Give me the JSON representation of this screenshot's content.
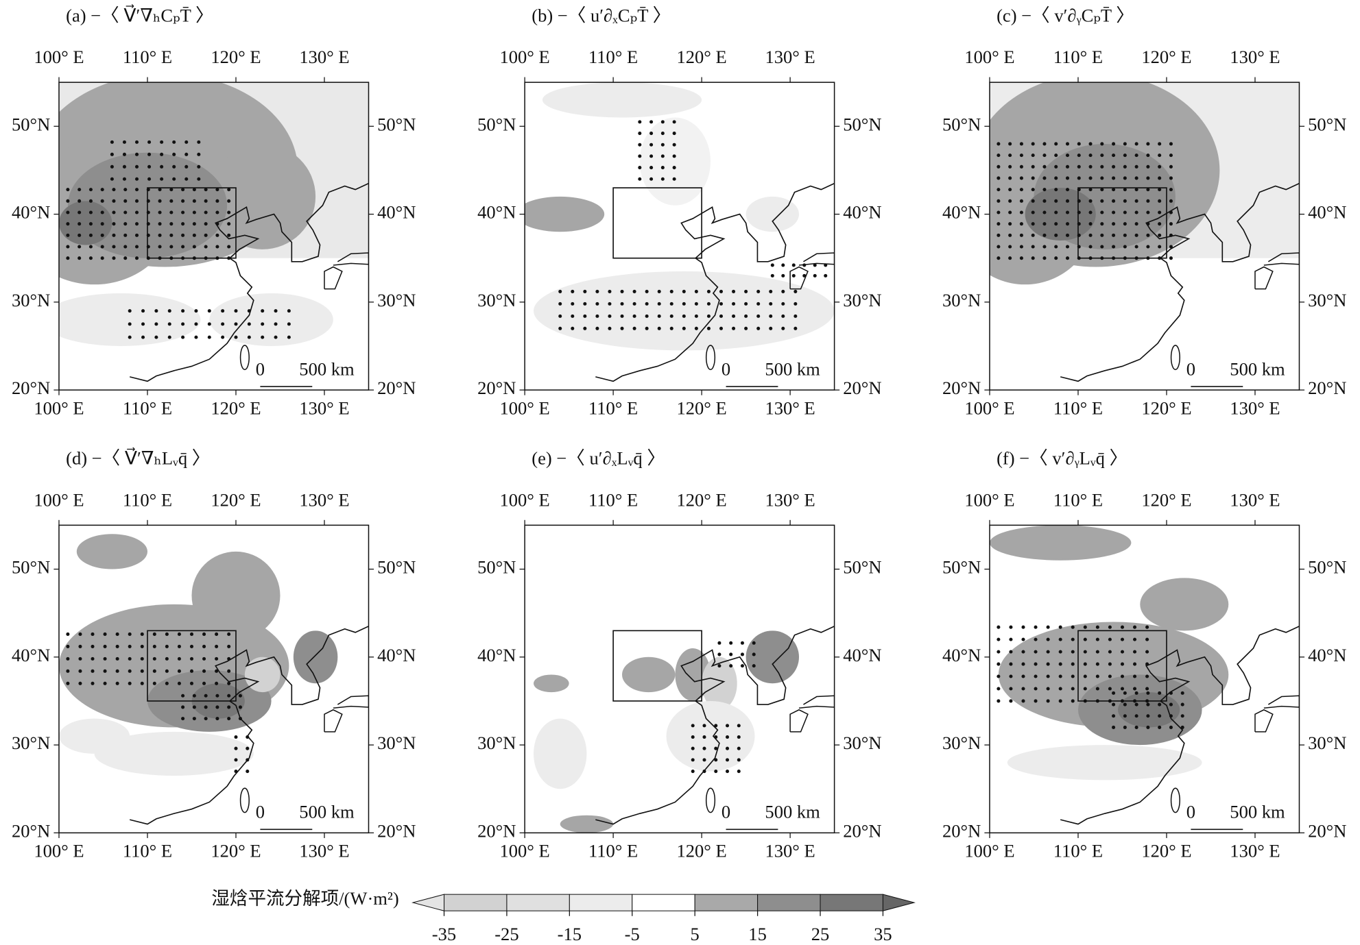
{
  "panels": [
    {
      "label": "(a) −〈 V⃗′∇ₕCₚT̄ 〉"
    },
    {
      "label": "(b) −〈 u′∂ₓCₚT̄ 〉"
    },
    {
      "label": "(c) −〈 v′∂ᵧCₚT̄ 〉"
    },
    {
      "label": "(d) −〈 V⃗′∇ₕLᵥq̄ 〉"
    },
    {
      "label": "(e) −〈 u′∂ₓLᵥq̄ 〉"
    },
    {
      "label": "(f) −〈 v′∂ᵧLᵥq̄ 〉"
    }
  ],
  "lon_ticks": [
    {
      "value": 100,
      "label": "100° E"
    },
    {
      "value": 110,
      "label": "110° E"
    },
    {
      "value": 120,
      "label": "120° E"
    },
    {
      "value": 130,
      "label": "130° E"
    }
  ],
  "lat_ticks": [
    {
      "value": 20,
      "label": "20°N"
    },
    {
      "value": 30,
      "label": "30°N"
    },
    {
      "value": 40,
      "label": "40°N"
    },
    {
      "value": 50,
      "label": "50°N"
    }
  ],
  "scale_bar": {
    "start": "0",
    "end": "500 km"
  },
  "colorbar": {
    "label": "湿焓平流分解项/(W·m²)",
    "ticks": [
      -35,
      -25,
      -15,
      -5,
      5,
      15,
      25,
      35
    ],
    "colors": [
      "#d2d2d2",
      "#e0e0e0",
      "#ececec",
      "#ffffff",
      "#a9a9a9",
      "#8e8e8e",
      "#777777"
    ],
    "extend_colors": [
      "#e4e4e4",
      "#666666"
    ]
  }
}
